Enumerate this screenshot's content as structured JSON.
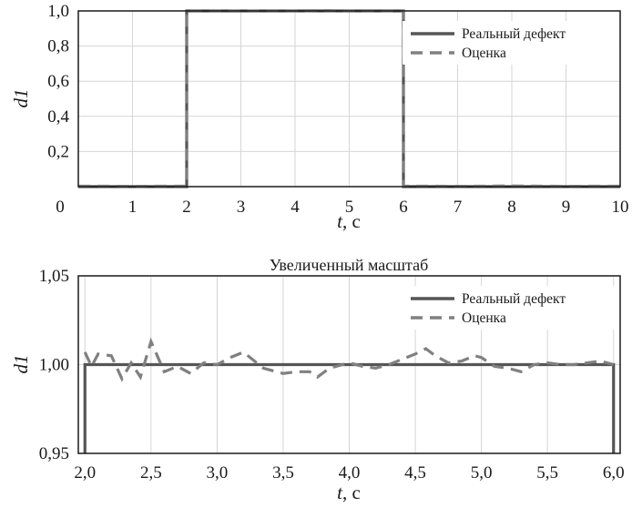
{
  "chart_data": [
    {
      "type": "line",
      "title": "",
      "xlabel": "t, с",
      "ylabel": "d1",
      "xlim": [
        0,
        10
      ],
      "ylim": [
        0,
        1.0
      ],
      "xticks": [
        "0",
        "1",
        "2",
        "3",
        "4",
        "5",
        "6",
        "7",
        "8",
        "9",
        "10"
      ],
      "yticks": [
        "0,2",
        "0,4",
        "0,6",
        "0,8",
        "1,0"
      ],
      "grid": true,
      "legend_position": "top-right",
      "series": [
        {
          "name": "Реальный дефект",
          "style": "solid",
          "color": "#555555",
          "x": [
            0,
            2,
            2,
            6,
            6,
            10
          ],
          "y": [
            0,
            0,
            1,
            1,
            0,
            0
          ]
        },
        {
          "name": "Оценка",
          "style": "dashed",
          "color": "#808080",
          "x": [
            0,
            1,
            2,
            2,
            2.5,
            3,
            3.5,
            4,
            4.5,
            5,
            5.5,
            6,
            6,
            7,
            8,
            9,
            10
          ],
          "y": [
            0.003,
            0.002,
            0.003,
            1.0,
            1.0,
            0.999,
            1.0,
            1.0,
            1.002,
            1.0,
            1.001,
            1.0,
            0.003,
            0.002,
            0.004,
            0.002,
            0.003
          ]
        }
      ]
    },
    {
      "type": "line",
      "title": "Увеличенный масштаб",
      "xlabel": "t, с",
      "ylabel": "d1",
      "xlim": [
        1.95,
        6.05
      ],
      "ylim": [
        0.95,
        1.05
      ],
      "xticks": [
        "2,0",
        "2,5",
        "3,0",
        "3,5",
        "4,0",
        "4,5",
        "5,0",
        "5,5",
        "6,0"
      ],
      "yticks": [
        "0,95",
        "1,00",
        "1,05"
      ],
      "grid": true,
      "legend_position": "top-right",
      "series": [
        {
          "name": "Реальный дефект",
          "style": "solid",
          "color": "#555555",
          "x": [
            2.0,
            2.0,
            6.0,
            6.0
          ],
          "y": [
            0.95,
            1.0,
            1.0,
            0.95
          ]
        },
        {
          "name": "Оценка",
          "style": "dashed",
          "color": "#808080",
          "x": [
            2.0,
            2.05,
            2.1,
            2.2,
            2.28,
            2.35,
            2.42,
            2.5,
            2.6,
            2.7,
            2.8,
            2.9,
            3.0,
            3.1,
            3.2,
            3.35,
            3.5,
            3.6,
            3.7,
            3.76,
            3.85,
            3.95,
            4.0,
            4.1,
            4.2,
            4.3,
            4.4,
            4.5,
            4.58,
            4.65,
            4.75,
            4.85,
            4.95,
            5.0,
            5.1,
            5.2,
            5.3,
            5.4,
            5.5,
            5.6,
            5.7,
            5.8,
            5.9,
            6.0
          ],
          "y": [
            1.007,
            0.999,
            1.006,
            1.005,
            0.992,
            1.001,
            0.993,
            1.013,
            0.996,
            0.999,
            0.995,
            1.001,
            1.0,
            1.004,
            1.007,
            0.998,
            0.995,
            0.996,
            0.996,
            0.993,
            0.998,
            1.0,
            1.001,
            0.999,
            0.998,
            1.0,
            1.003,
            1.006,
            1.009,
            1.005,
            1.001,
            1.002,
            1.005,
            1.004,
            0.999,
            0.998,
            0.996,
            1.0,
            1.001,
            1.0,
            1.0,
            1.001,
            1.002,
            1.0
          ]
        }
      ]
    }
  ]
}
